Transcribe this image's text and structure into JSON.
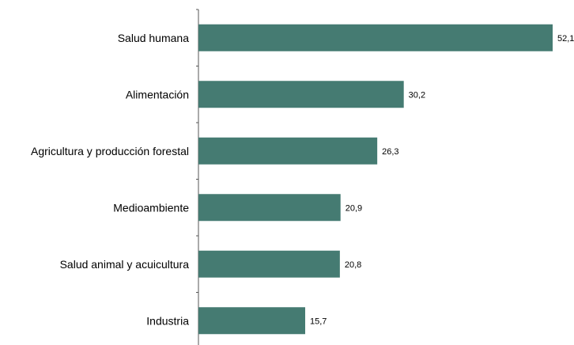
{
  "chart_data": {
    "type": "bar",
    "orientation": "horizontal",
    "categories": [
      "Salud humana",
      "Alimentación",
      "Agricultura y producción forestal",
      "Medioambiente",
      "Salud animal y acuicultura",
      "Industria"
    ],
    "values": [
      52.1,
      30.2,
      26.3,
      20.9,
      20.8,
      15.7
    ],
    "value_labels": [
      "52,1",
      "30,2",
      "26,3",
      "20,9",
      "20,8",
      "15,7"
    ],
    "bar_color": "#457b72",
    "title": "",
    "xlabel": "",
    "ylabel": "",
    "xlim": [
      0,
      52.1
    ],
    "grid": false,
    "legend": "none"
  }
}
